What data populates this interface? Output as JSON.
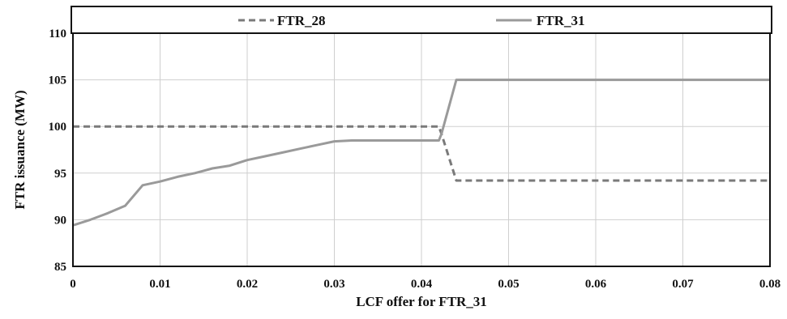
{
  "chart_data": {
    "type": "line",
    "title": "",
    "xlabel": "LCF offer for FTR_31",
    "ylabel": "FTR issuance (MW)",
    "xlim": [
      0,
      0.08
    ],
    "ylim": [
      85,
      110
    ],
    "x_ticks": [
      "0",
      "0.01",
      "0.02",
      "0.03",
      "0.04",
      "0.05",
      "0.06",
      "0.07",
      "0.08"
    ],
    "y_ticks": [
      "85",
      "90",
      "95",
      "100",
      "105",
      "110"
    ],
    "grid": true,
    "legend_position": "top",
    "series": [
      {
        "name": "FTR_28",
        "style": "dashed",
        "color": "#7a7a7a",
        "x": [
          0,
          0.042,
          0.0423,
          0.044,
          0.08
        ],
        "y": [
          100,
          100,
          99.2,
          94.2,
          94.2
        ]
      },
      {
        "name": "FTR_31",
        "style": "solid",
        "color": "#9a9a9a",
        "x": [
          0,
          0.002,
          0.004,
          0.006,
          0.008,
          0.01,
          0.012,
          0.014,
          0.016,
          0.018,
          0.02,
          0.022,
          0.024,
          0.026,
          0.028,
          0.03,
          0.032,
          0.034,
          0.036,
          0.038,
          0.04,
          0.042,
          0.0423,
          0.044,
          0.08
        ],
        "y": [
          89.4,
          90.0,
          90.7,
          91.5,
          93.7,
          94.1,
          94.6,
          95.0,
          95.5,
          95.8,
          96.4,
          96.8,
          97.2,
          97.6,
          98.0,
          98.4,
          98.5,
          98.5,
          98.5,
          98.5,
          98.5,
          98.5,
          99.2,
          105,
          105
        ]
      }
    ]
  }
}
